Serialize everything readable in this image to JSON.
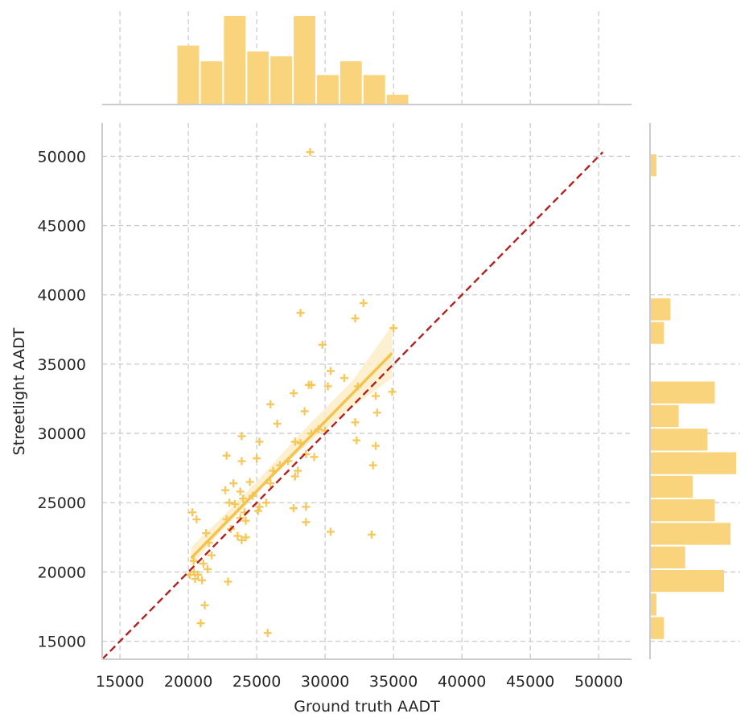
{
  "chart_data": {
    "type": "scatter",
    "xlabel": "Ground truth AADT",
    "ylabel": "Streetlight AADT",
    "xlim": [
      13700,
      52400
    ],
    "ylim": [
      13700,
      52400
    ],
    "xticks": [
      "15000",
      "20000",
      "25000",
      "30000",
      "35000",
      "40000",
      "45000",
      "50000"
    ],
    "yticks": [
      "15000",
      "20000",
      "25000",
      "30000",
      "35000",
      "40000",
      "45000",
      "50000"
    ],
    "grid": true,
    "marker": "plus",
    "colors": {
      "points": "#f4c34d",
      "hist": "#fad47c",
      "identity_line": "#b22222",
      "band": "#fdecc4",
      "axis": "#cccccc",
      "grid": "#cccccc"
    },
    "points": [
      [
        28900,
        50300
      ],
      [
        28200,
        38700
      ],
      [
        32800,
        39400
      ],
      [
        32200,
        38300
      ],
      [
        35000,
        37600
      ],
      [
        29800,
        36400
      ],
      [
        30400,
        34500
      ],
      [
        31400,
        34000
      ],
      [
        32400,
        33400
      ],
      [
        28800,
        33500
      ],
      [
        29000,
        33500
      ],
      [
        30200,
        33400
      ],
      [
        33700,
        32700
      ],
      [
        34900,
        33000
      ],
      [
        27700,
        32900
      ],
      [
        26000,
        32100
      ],
      [
        28500,
        31600
      ],
      [
        33800,
        31500
      ],
      [
        26500,
        30700
      ],
      [
        32200,
        30800
      ],
      [
        29500,
        30300
      ],
      [
        29000,
        30000
      ],
      [
        30000,
        30200
      ],
      [
        23900,
        29800
      ],
      [
        25200,
        29400
      ],
      [
        27800,
        29400
      ],
      [
        28200,
        29300
      ],
      [
        32300,
        29500
      ],
      [
        33700,
        29100
      ],
      [
        22800,
        28400
      ],
      [
        25000,
        28200
      ],
      [
        29200,
        28300
      ],
      [
        23900,
        28000
      ],
      [
        26700,
        27700
      ],
      [
        27300,
        28000
      ],
      [
        28600,
        28500
      ],
      [
        33500,
        27700
      ],
      [
        26200,
        27300
      ],
      [
        28000,
        27300
      ],
      [
        27800,
        26900
      ],
      [
        26000,
        26400
      ],
      [
        23300,
        26400
      ],
      [
        24500,
        26500
      ],
      [
        22700,
        25900
      ],
      [
        23800,
        25800
      ],
      [
        24000,
        25300
      ],
      [
        23000,
        25000
      ],
      [
        23400,
        24900
      ],
      [
        24700,
        25500
      ],
      [
        25700,
        25000
      ],
      [
        25200,
        24700
      ],
      [
        25100,
        24400
      ],
      [
        27700,
        24600
      ],
      [
        28600,
        24700
      ],
      [
        24100,
        24300
      ],
      [
        23800,
        23900
      ],
      [
        22800,
        23800
      ],
      [
        24200,
        23700
      ],
      [
        28600,
        23600
      ],
      [
        20600,
        23800
      ],
      [
        20300,
        24300
      ],
      [
        23100,
        23100
      ],
      [
        23600,
        22600
      ],
      [
        23900,
        22300
      ],
      [
        24200,
        22500
      ],
      [
        21300,
        22800
      ],
      [
        30400,
        22900
      ],
      [
        33400,
        22700
      ],
      [
        21500,
        22100
      ],
      [
        21700,
        21200
      ],
      [
        21100,
        20600
      ],
      [
        21400,
        20200
      ],
      [
        20400,
        20800
      ],
      [
        20400,
        20000
      ],
      [
        20100,
        19800
      ],
      [
        20500,
        19500
      ],
      [
        20700,
        19800
      ],
      [
        21000,
        19400
      ],
      [
        22900,
        19300
      ],
      [
        21200,
        17600
      ],
      [
        20900,
        16300
      ],
      [
        25800,
        15600
      ]
    ],
    "regression_line": {
      "x": [
        20200,
        34900
      ],
      "y": [
        21000,
        35800
      ]
    },
    "confidence_band": {
      "x": [
        20200,
        22000,
        24000,
        26000,
        28000,
        30000,
        32000,
        34900
      ],
      "lower": [
        20400,
        22500,
        24600,
        26700,
        28600,
        30300,
        31900,
        34000
      ],
      "upper": [
        21800,
        23500,
        25500,
        27600,
        29800,
        31800,
        33800,
        37800
      ]
    },
    "identity_line": {
      "x": [
        13700,
        50300
      ],
      "y": [
        13700,
        50300
      ]
    },
    "marginal_x_histogram": {
      "bins": [
        {
          "start": 19200,
          "end": 20900,
          "count": 6
        },
        {
          "start": 20900,
          "end": 22600,
          "count": 4.4
        },
        {
          "start": 22600,
          "end": 24300,
          "count": 9
        },
        {
          "start": 24300,
          "end": 26000,
          "count": 5.4
        },
        {
          "start": 26000,
          "end": 27700,
          "count": 4.9
        },
        {
          "start": 27700,
          "end": 29400,
          "count": 9
        },
        {
          "start": 29400,
          "end": 31100,
          "count": 3
        },
        {
          "start": 31100,
          "end": 32800,
          "count": 4.4
        },
        {
          "start": 32800,
          "end": 34500,
          "count": 3
        },
        {
          "start": 34500,
          "end": 36200,
          "count": 1
        }
      ]
    },
    "marginal_y_histogram": {
      "bins": [
        {
          "start": 15100,
          "end": 16800,
          "count": 1.5
        },
        {
          "start": 16800,
          "end": 18500,
          "count": 0.7
        },
        {
          "start": 18500,
          "end": 20200,
          "count": 8
        },
        {
          "start": 20200,
          "end": 21900,
          "count": 3.8
        },
        {
          "start": 21900,
          "end": 23600,
          "count": 8.7
        },
        {
          "start": 23600,
          "end": 25300,
          "count": 7
        },
        {
          "start": 25300,
          "end": 27000,
          "count": 4.6
        },
        {
          "start": 27000,
          "end": 28700,
          "count": 9.3
        },
        {
          "start": 28700,
          "end": 30400,
          "count": 6.2
        },
        {
          "start": 30400,
          "end": 32100,
          "count": 3.1
        },
        {
          "start": 32100,
          "end": 33800,
          "count": 7
        },
        {
          "start": 36400,
          "end": 38100,
          "count": 1.5
        },
        {
          "start": 38100,
          "end": 39800,
          "count": 2.2
        },
        {
          "start": 48500,
          "end": 50200,
          "count": 0.7
        }
      ]
    }
  }
}
